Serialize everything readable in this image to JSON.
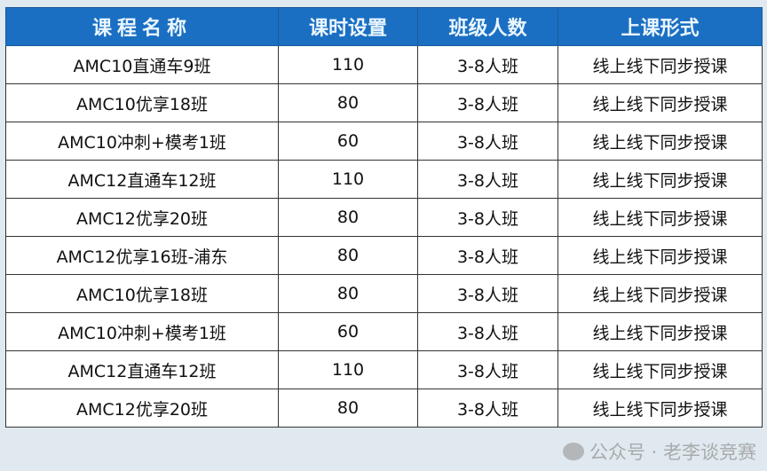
{
  "table": {
    "headers": [
      "课程名称",
      "课时设置",
      "班级人数",
      "上课形式"
    ],
    "rows": [
      [
        "AMC10直通车9班",
        "110",
        "3-8人班",
        "线上线下同步授课"
      ],
      [
        "AMC10优享18班",
        "80",
        "3-8人班",
        "线上线下同步授课"
      ],
      [
        "AMC10冲刺+模考1班",
        "60",
        "3-8人班",
        "线上线下同步授课"
      ],
      [
        "AMC12直通车12班",
        "110",
        "3-8人班",
        "线上线下同步授课"
      ],
      [
        "AMC12优享20班",
        "80",
        "3-8人班",
        "线上线下同步授课"
      ],
      [
        "AMC12优享16班-浦东",
        "80",
        "3-8人班",
        "线上线下同步授课"
      ],
      [
        "AMC10优享18班",
        "80",
        "3-8人班",
        "线上线下同步授课"
      ],
      [
        "AMC10冲刺+模考1班",
        "60",
        "3-8人班",
        "线上线下同步授课"
      ],
      [
        "AMC12直通车12班",
        "110",
        "3-8人班",
        "线上线下同步授课"
      ],
      [
        "AMC12优享20班",
        "80",
        "3-8人班",
        "线上线下同步授课"
      ]
    ]
  },
  "watermark": {
    "icon": "wechat-icon",
    "text": "公众号 · 老李谈竞赛"
  },
  "colors": {
    "header_bg": "#1b6fc2",
    "header_text": "#eaf6ff"
  }
}
